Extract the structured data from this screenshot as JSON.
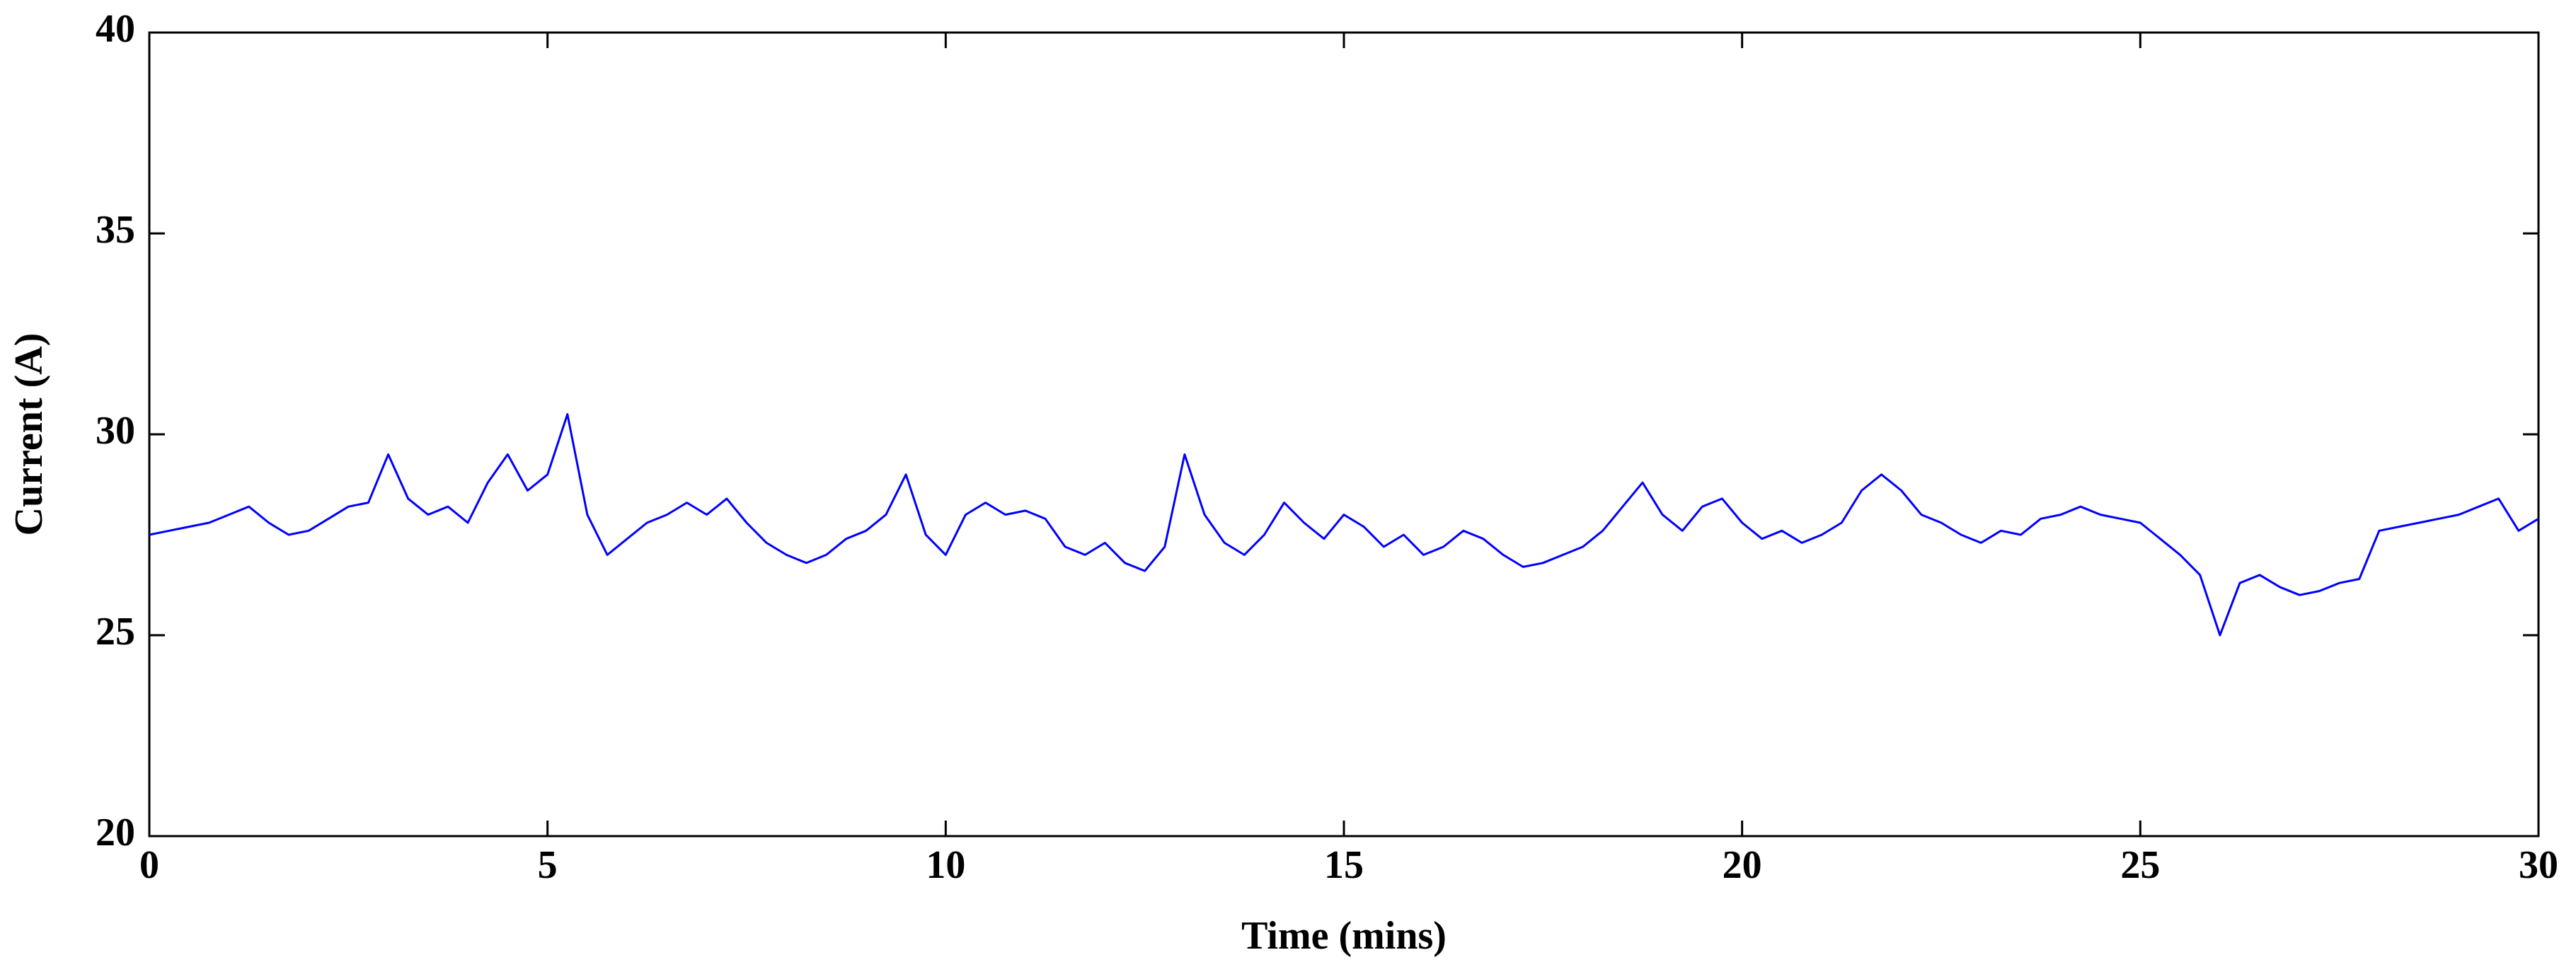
{
  "chart_data": {
    "type": "line",
    "xlabel": "Time (mins)",
    "ylabel": "Current (A)",
    "x": [
      0,
      0.25,
      0.5,
      0.75,
      1,
      1.25,
      1.5,
      1.75,
      2,
      2.25,
      2.5,
      2.75,
      3,
      3.25,
      3.5,
      3.75,
      4,
      4.25,
      4.5,
      4.75,
      5,
      5.25,
      5.5,
      5.75,
      6,
      6.25,
      6.5,
      6.75,
      7,
      7.25,
      7.5,
      7.75,
      8,
      8.25,
      8.5,
      8.75,
      9,
      9.25,
      9.5,
      9.75,
      10,
      10.25,
      10.5,
      10.75,
      11,
      11.25,
      11.5,
      11.75,
      12,
      12.25,
      12.5,
      12.75,
      13,
      13.25,
      13.5,
      13.75,
      14,
      14.25,
      14.5,
      14.75,
      15,
      15.25,
      15.5,
      15.75,
      16,
      16.25,
      16.5,
      16.75,
      17,
      17.25,
      17.5,
      17.75,
      18,
      18.25,
      18.5,
      18.75,
      19,
      19.25,
      19.5,
      19.75,
      20,
      20.25,
      20.5,
      20.75,
      21,
      21.25,
      21.5,
      21.75,
      22,
      22.25,
      22.5,
      22.75,
      23,
      23.25,
      23.5,
      23.75,
      24,
      24.25,
      24.5,
      24.75,
      25,
      25.25,
      25.5,
      25.75,
      26,
      26.25,
      26.5,
      26.75,
      27,
      27.25,
      27.5,
      27.75,
      28,
      28.25,
      28.5,
      28.75,
      29,
      29.25,
      29.5,
      29.75,
      30
    ],
    "values": [
      27.5,
      27.6,
      27.7,
      27.8,
      28.0,
      28.2,
      27.8,
      27.5,
      27.6,
      27.9,
      28.2,
      28.3,
      29.5,
      28.4,
      28.0,
      28.2,
      27.8,
      28.8,
      29.5,
      28.6,
      29.0,
      30.5,
      28.0,
      27.0,
      27.4,
      27.8,
      28.0,
      28.3,
      28.0,
      28.4,
      27.8,
      27.3,
      27.0,
      26.8,
      27.0,
      27.4,
      27.6,
      28.0,
      29.0,
      27.5,
      27.0,
      28.0,
      28.3,
      28.0,
      28.1,
      27.9,
      27.2,
      27.0,
      27.3,
      26.8,
      26.6,
      27.2,
      29.5,
      28.0,
      27.3,
      27.0,
      27.5,
      28.3,
      27.8,
      27.4,
      28.0,
      27.7,
      27.2,
      27.5,
      27.0,
      27.2,
      27.6,
      27.4,
      27.0,
      26.7,
      26.8,
      27.0,
      27.2,
      27.6,
      28.2,
      28.8,
      28.0,
      27.6,
      28.2,
      28.4,
      27.8,
      27.4,
      27.6,
      27.3,
      27.5,
      27.8,
      28.6,
      29.0,
      28.6,
      28.0,
      27.8,
      27.5,
      27.3,
      27.6,
      27.5,
      27.9,
      28.0,
      28.2,
      28.0,
      27.9,
      27.8,
      27.4,
      27.0,
      26.5,
      25.0,
      26.3,
      26.5,
      26.2,
      26.0,
      26.1,
      26.3,
      26.4,
      27.6,
      27.7,
      27.8,
      27.9,
      28.0,
      28.2,
      28.4,
      27.6,
      27.9
    ],
    "color": "#0000ff",
    "xlim": [
      0,
      30
    ],
    "xticks": [
      0,
      5,
      10,
      15,
      20,
      25,
      30
    ],
    "ylim": [
      20,
      40
    ],
    "yticks": [
      20,
      25,
      30,
      35,
      40
    ]
  }
}
